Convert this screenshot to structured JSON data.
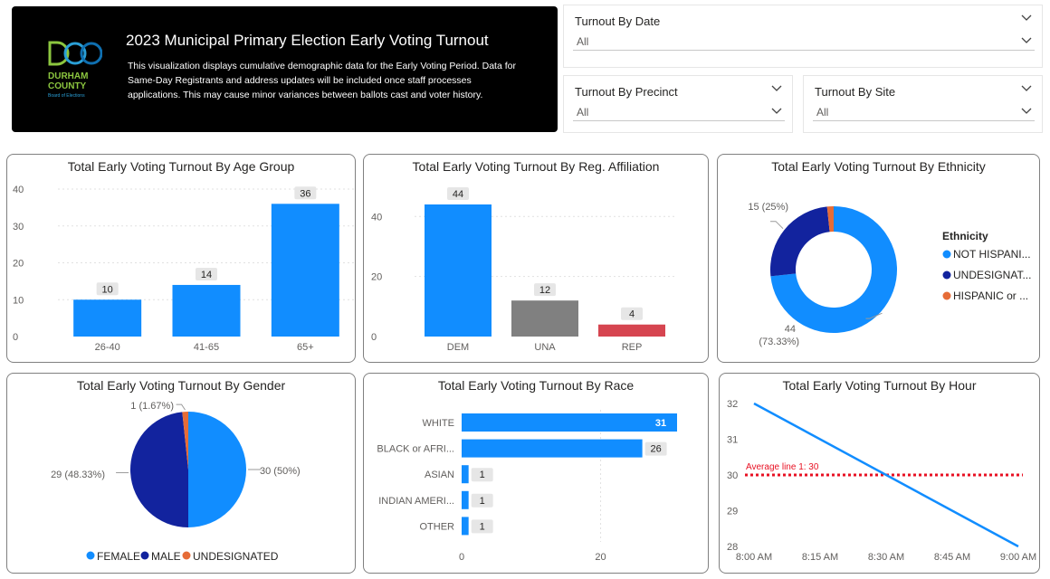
{
  "header": {
    "title": "2023 Municipal Primary Election Early Voting Turnout",
    "description": "This visualization displays cumulative demographic data for the Early Voting Period. Data for Same-Day Registrants and address updates will be included once staff processes applications. This may cause minor variances between ballots cast and voter history.",
    "logo": {
      "line1": "DURHAM",
      "line2": "COUNTY",
      "line3": "Board of Elections",
      "letters": "DCO",
      "colors": [
        "#8cc63f",
        "#2a9fd6",
        "#0f6fb0"
      ]
    }
  },
  "filters": {
    "date": {
      "label": "Turnout By Date",
      "value": "All"
    },
    "precinct": {
      "label": "Turnout By Precinct",
      "value": "All"
    },
    "site": {
      "label": "Turnout By Site",
      "value": "All"
    }
  },
  "colors": {
    "blue": "#118dff",
    "navy": "#12239e",
    "orange": "#e66c37",
    "gray": "#808080",
    "red": "#d64550",
    "avg_line": "#e81123"
  },
  "chart_data": [
    {
      "id": "age",
      "type": "bar",
      "title": "Total Early Voting Turnout By Age Group",
      "categories": [
        "26-40",
        "41-65",
        "65+"
      ],
      "values": [
        10,
        14,
        36
      ],
      "ylim": [
        0,
        40
      ],
      "yticks": [
        0,
        10,
        20,
        30,
        40
      ],
      "grid": true
    },
    {
      "id": "affiliation",
      "type": "bar",
      "title": "Total Early Voting Turnout By Reg. Affiliation",
      "categories": [
        "DEM",
        "UNA",
        "REP"
      ],
      "values": [
        44,
        12,
        4
      ],
      "bar_colors": [
        "#118dff",
        "#808080",
        "#d64550"
      ],
      "ylim": [
        0,
        44
      ],
      "yticks": [
        0,
        20,
        40
      ],
      "grid": true
    },
    {
      "id": "ethnicity",
      "type": "pie",
      "donut": true,
      "title": "Total Early Voting Turnout By Ethnicity",
      "legend_title": "Ethnicity",
      "legend_position": "right",
      "slices": [
        {
          "name": "NOT HISPANI...",
          "value": 44,
          "label_line1": "44",
          "label_line2": "(73.33%)",
          "color": "#118dff"
        },
        {
          "name": "UNDESIGNAT...",
          "value": 15,
          "label_line1": "15 (25%)",
          "color": "#12239e"
        },
        {
          "name": "HISPANIC or ...",
          "value": 1,
          "color": "#e66c37"
        }
      ]
    },
    {
      "id": "gender",
      "type": "pie",
      "title": "Total Early Voting Turnout By Gender",
      "legend_position": "bottom",
      "slices": [
        {
          "name": "FEMALE",
          "value": 30,
          "label": "30 (50%)",
          "color": "#118dff"
        },
        {
          "name": "MALE",
          "value": 29,
          "label": "29 (48.33%)",
          "color": "#12239e"
        },
        {
          "name": "UNDESIGNATED",
          "value": 1,
          "label": "1 (1.67%)",
          "color": "#e66c37"
        }
      ]
    },
    {
      "id": "race",
      "type": "bar",
      "orientation": "horizontal",
      "title": "Total Early Voting Turnout By Race",
      "categories": [
        "WHITE",
        "BLACK or AFRI...",
        "ASIAN",
        "INDIAN AMERI...",
        "OTHER"
      ],
      "values": [
        31,
        26,
        1,
        1,
        1
      ],
      "xlim": [
        0,
        31
      ],
      "xticks": [
        0,
        20
      ],
      "grid": true
    },
    {
      "id": "hour",
      "type": "line",
      "title": "Total Early Voting Turnout By Hour",
      "x": [
        "8:00 AM",
        "8:15 AM",
        "8:30 AM",
        "8:45 AM",
        "9:00 AM"
      ],
      "points": [
        {
          "x": "8:00 AM",
          "y": 32
        },
        {
          "x": "9:00 AM",
          "y": 28
        }
      ],
      "ylim": [
        28,
        32
      ],
      "yticks": [
        28,
        29,
        30,
        31,
        32
      ],
      "average": {
        "label": "Average line 1: 30",
        "value": 30
      }
    }
  ]
}
